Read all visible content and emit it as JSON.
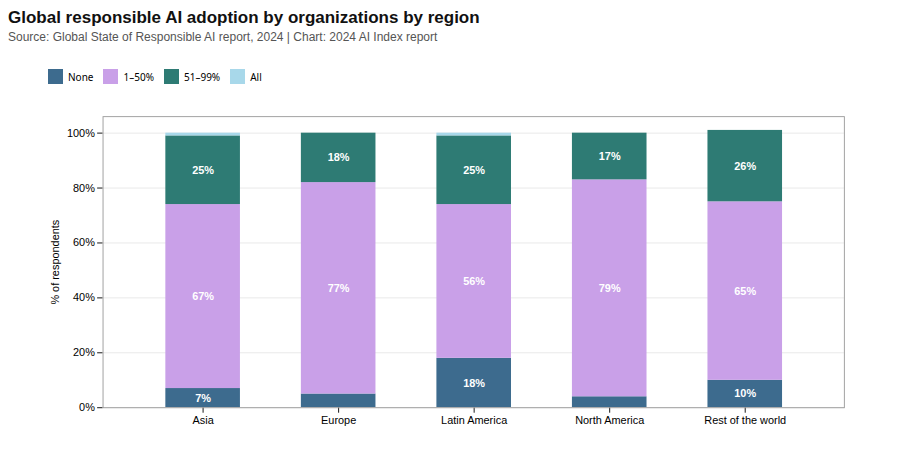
{
  "chart_data": {
    "type": "bar",
    "title": "Global responsible AI adoption by organizations by region",
    "subtitle": "Source: Global State of Responsible AI report, 2024 | Chart: 2024 AI Index report",
    "ylabel": "% of respondents",
    "categories": [
      "Asia",
      "Europe",
      "Latin America",
      "North America",
      "Rest of the world"
    ],
    "series": [
      {
        "name": "None",
        "color": "#3d6b8e",
        "values": [
          7,
          5,
          18,
          4,
          10
        ],
        "value_labels": [
          "7%",
          null,
          "18%",
          null,
          "10%"
        ]
      },
      {
        "name": "1–50%",
        "color": "#c9a0e8",
        "values": [
          67,
          77,
          56,
          79,
          65
        ],
        "value_labels": [
          "67%",
          "77%",
          "56%",
          "79%",
          "65%"
        ]
      },
      {
        "name": "51–99%",
        "color": "#2e7b74",
        "values": [
          25,
          18,
          25,
          17,
          26
        ],
        "value_labels": [
          "25%",
          "18%",
          "25%",
          "17%",
          "26%"
        ]
      },
      {
        "name": "All",
        "color": "#a8d8ea",
        "values": [
          1,
          0,
          1,
          0,
          0
        ],
        "value_labels": [
          null,
          null,
          null,
          null,
          null
        ]
      }
    ],
    "ylim": [
      0,
      106
    ],
    "yticks": [
      {
        "value": 0,
        "label": "0%"
      },
      {
        "value": 20,
        "label": "20%"
      },
      {
        "value": 40,
        "label": "40%"
      },
      {
        "value": 60,
        "label": "60%"
      },
      {
        "value": 80,
        "label": "80%"
      },
      {
        "value": 100,
        "label": "100%"
      }
    ],
    "stacked": true,
    "grid": true,
    "legend": "top",
    "data_labels": true
  }
}
